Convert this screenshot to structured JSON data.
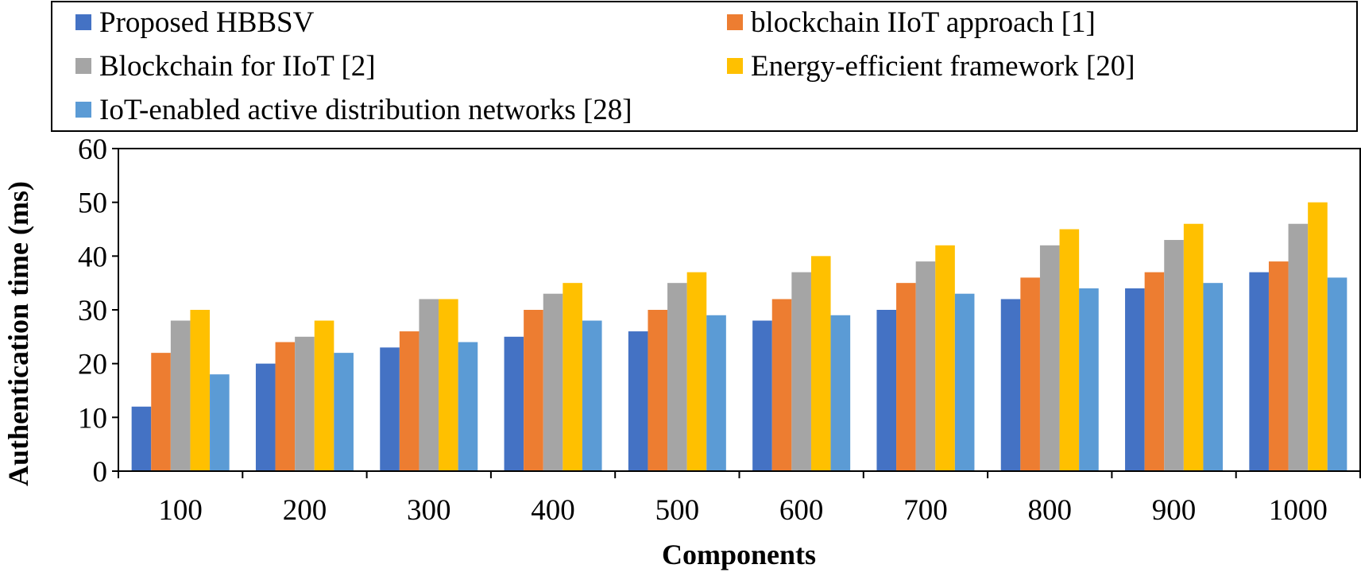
{
  "chart_data": {
    "type": "bar",
    "title": "",
    "xlabel": "Components",
    "ylabel": "Authentication time (ms)",
    "ylim": [
      0,
      60
    ],
    "yticks": [
      "0",
      "10",
      "20",
      "30",
      "40",
      "50",
      "60"
    ],
    "grid": false,
    "legend_position": "top",
    "categories": [
      "100",
      "200",
      "300",
      "400",
      "500",
      "600",
      "700",
      "800",
      "900",
      "1000"
    ],
    "series": [
      {
        "name": "Proposed HBBSV",
        "color": "#4472C4",
        "values": [
          12,
          20,
          23,
          25,
          26,
          28,
          30,
          32,
          34,
          37
        ]
      },
      {
        "name": "blockchain IIoT approach [1]",
        "color": "#ED7D31",
        "values": [
          22,
          24,
          26,
          30,
          30,
          32,
          35,
          36,
          37,
          39
        ]
      },
      {
        "name": "Blockchain for IIoT [2]",
        "color": "#A5A5A5",
        "values": [
          28,
          25,
          32,
          33,
          35,
          37,
          39,
          42,
          43,
          46
        ]
      },
      {
        "name": "Energy-efficient framework [20]",
        "color": "#FFC000",
        "values": [
          30,
          28,
          32,
          35,
          37,
          40,
          42,
          45,
          46,
          50
        ]
      },
      {
        "name": "IoT-enabled active distribution networks [28]",
        "color": "#5B9BD5",
        "values": [
          18,
          22,
          24,
          28,
          29,
          29,
          33,
          34,
          35,
          36
        ]
      }
    ]
  }
}
